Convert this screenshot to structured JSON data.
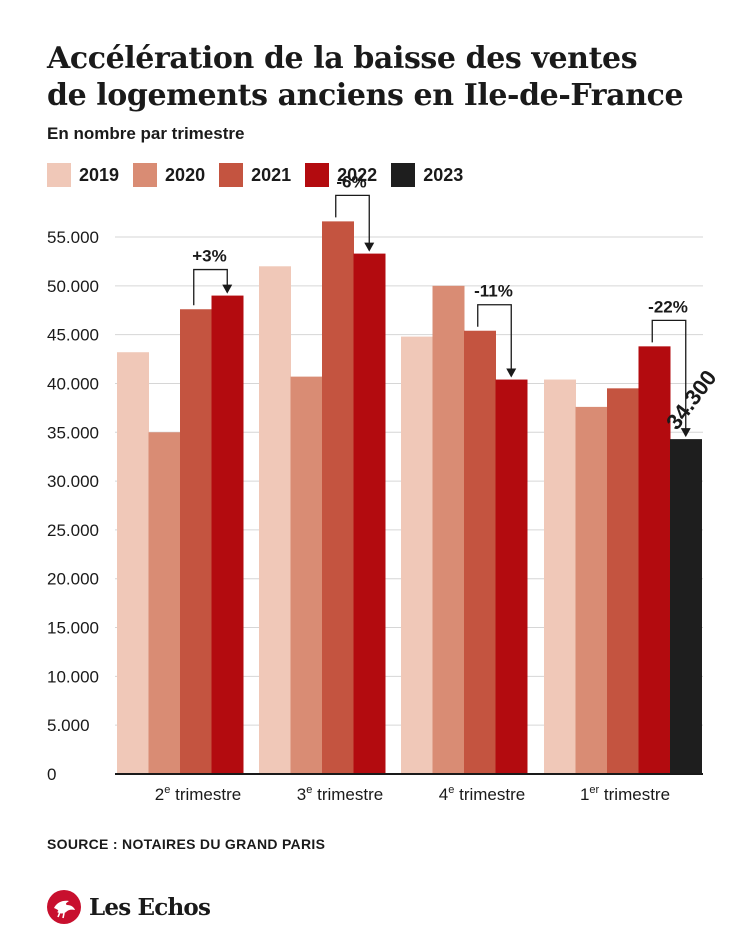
{
  "title_lines": [
    "Accélération de la baisse des ventes",
    "de logements anciens en Ile-de-France"
  ],
  "subtitle": "En nombre par trimestre",
  "source": "SOURCE : NOTAIRES DU GRAND PARIS",
  "logo_text": "Les Echos",
  "colors": {
    "2019": "#f0c8b8",
    "2020": "#d98c74",
    "2021": "#c45440",
    "2022": "#b30b0f",
    "2023": "#1e1e1e",
    "grid": "#d6d6d6",
    "axis": "#1a1a1a"
  },
  "chart_data": {
    "type": "bar",
    "title": "Accélération de la baisse des ventes de logements anciens en Ile-de-France",
    "subtitle": "En nombre par trimestre",
    "legend_position": "top-left",
    "grid": true,
    "ylim": [
      0,
      55000
    ],
    "yticks": [
      {
        "value": 0,
        "label": "0"
      },
      {
        "value": 5000,
        "label": "5.000"
      },
      {
        "value": 10000,
        "label": "10.000"
      },
      {
        "value": 15000,
        "label": "15.000"
      },
      {
        "value": 20000,
        "label": "20.000"
      },
      {
        "value": 25000,
        "label": "25.000"
      },
      {
        "value": 30000,
        "label": "30.000"
      },
      {
        "value": 35000,
        "label": "35.000"
      },
      {
        "value": 40000,
        "label": "40.000"
      },
      {
        "value": 45000,
        "label": "45.000"
      },
      {
        "value": 50000,
        "label": "50.000"
      },
      {
        "value": 55000,
        "label": "55.000"
      }
    ],
    "groups": [
      {
        "label_num": "2",
        "label_sup": "e",
        "label_rest": " trimestre",
        "bars": [
          {
            "series": "2019",
            "value": 43200
          },
          {
            "series": "2020",
            "value": 35000
          },
          {
            "series": "2021",
            "value": 47600
          },
          {
            "series": "2022",
            "value": 49000
          }
        ],
        "annotation": {
          "text": "+3%",
          "from": 2,
          "to": 3
        }
      },
      {
        "label_num": "3",
        "label_sup": "e",
        "label_rest": " trimestre",
        "bars": [
          {
            "series": "2019",
            "value": 52000
          },
          {
            "series": "2020",
            "value": 40700
          },
          {
            "series": "2021",
            "value": 56600
          },
          {
            "series": "2022",
            "value": 53300
          }
        ],
        "annotation": {
          "text": "-6%",
          "from": 2,
          "to": 3
        }
      },
      {
        "label_num": "4",
        "label_sup": "e",
        "label_rest": " trimestre",
        "bars": [
          {
            "series": "2019",
            "value": 44800
          },
          {
            "series": "2020",
            "value": 50000
          },
          {
            "series": "2021",
            "value": 45400
          },
          {
            "series": "2022",
            "value": 40400
          }
        ],
        "annotation": {
          "text": "-11%",
          "from": 2,
          "to": 3
        }
      },
      {
        "label_num": "1",
        "label_sup": "er",
        "label_rest": " trimestre",
        "bars": [
          {
            "series": "2019",
            "value": 40400
          },
          {
            "series": "2020",
            "value": 37600
          },
          {
            "series": "2021",
            "value": 39500
          },
          {
            "series": "2022",
            "value": 43800
          },
          {
            "series": "2023",
            "value": 34300,
            "label": "34.300"
          }
        ],
        "annotation": {
          "text": "-22%",
          "from": 3,
          "to": 4
        }
      }
    ],
    "series": [
      {
        "name": "2019"
      },
      {
        "name": "2020"
      },
      {
        "name": "2021"
      },
      {
        "name": "2022"
      },
      {
        "name": "2023"
      }
    ]
  }
}
